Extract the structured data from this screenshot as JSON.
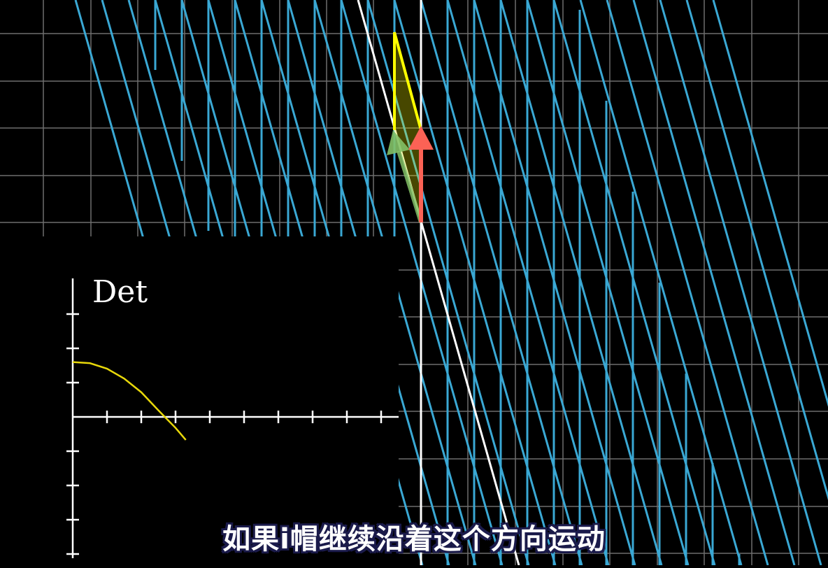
{
  "video": {
    "subtitle": "如果i帽继续沿着这个方向运动",
    "inset_label": "Det"
  },
  "colors": {
    "background": "#000000",
    "grid": "#888888",
    "transformed_grid": "#3aa8d4",
    "i_hat_vector": "#83c167",
    "j_hat_vector": "#fc6255",
    "area_fill": "#ffff00",
    "det_curve": "#e8d80a",
    "axis": "#ffffff"
  },
  "chart_data": {
    "type": "line",
    "title": "Det",
    "xlabel": "",
    "ylabel": "Det",
    "x_ticks": 9,
    "y_ticks": 6,
    "series": [
      {
        "values": [
          [
            0,
            1.0
          ],
          [
            0.5,
            0.98
          ],
          [
            1,
            0.88
          ],
          [
            1.5,
            0.7
          ],
          [
            2,
            0.45
          ],
          [
            2.5,
            0.12
          ],
          [
            3,
            -0.2
          ],
          [
            3.3,
            -0.42
          ]
        ]
      }
    ]
  }
}
